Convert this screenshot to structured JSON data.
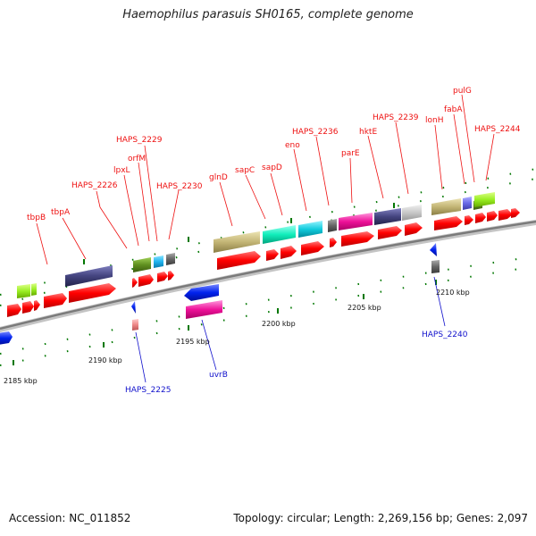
{
  "title": "Haemophilus parasuis SH0165, complete genome",
  "footer": {
    "accession": "Accession: NC_011852",
    "summary": "Topology: circular; Length: 2,269,156 bp; Genes: 2,097"
  },
  "scale_labels": [
    "2185 kbp",
    "2190 kbp",
    "2195 kbp",
    "2200 kbp",
    "2205 kbp",
    "2210 kbp"
  ],
  "gene_labels": [
    "tbpB",
    "tbpA",
    "HAPS_2226",
    "lpxL",
    "orfM",
    "HAPS_2229",
    "HAPS_2230",
    "glnD",
    "sapC",
    "sapD",
    "eno",
    "HAPS_2236",
    "parE",
    "hktE",
    "HAPS_2239",
    "lonH",
    "fabA",
    "pulG",
    "HAPS_2244",
    "HAPS_2225",
    "uvrB",
    "HAPS_2240"
  ],
  "colors": {
    "cds": "#ff0000",
    "backbone": "#888888",
    "forward_label": "#ee1111",
    "reverse_label": "#1111cc",
    "tick": "#007700"
  }
}
